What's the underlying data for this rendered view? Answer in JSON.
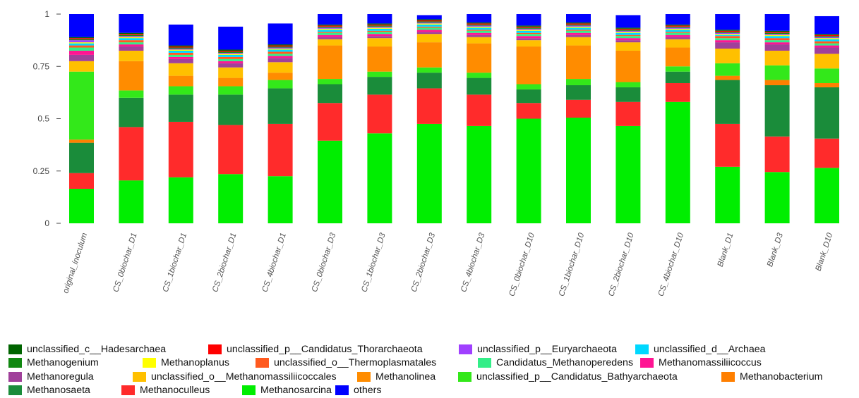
{
  "chart_data": {
    "type": "bar",
    "stacked": true,
    "title": "",
    "xlabel": "",
    "ylabel": "",
    "ylim": [
      0,
      1
    ],
    "yticks": [
      0,
      0.25,
      0.5,
      0.75,
      1
    ],
    "ytick_labels": [
      "0",
      "0.25",
      "0.5",
      "0.75",
      "1"
    ],
    "grid": false,
    "legend_position": "bottom",
    "categories": [
      "original_inoculum",
      "CS_0biochar_D1",
      "CS_1biochar_D1",
      "CS_2biochar_D1",
      "CS_4biochar_D1",
      "CS_0biochar_D3",
      "CS_1biochar_D3",
      "CS_2biochar_D3",
      "CS_4biochar_D3",
      "CS_0biochar_D10",
      "CS_1biochar_D10",
      "CS_2biochar_D10",
      "CS_4biochar_D10",
      "Blank_D1",
      "Blank_D3",
      "Blank_D10"
    ],
    "series": [
      {
        "name": "Methanosarcina",
        "color": "#00ee00",
        "values": [
          0.165,
          0.205,
          0.22,
          0.235,
          0.225,
          0.395,
          0.43,
          0.475,
          0.465,
          0.5,
          0.505,
          0.465,
          0.58,
          0.27,
          0.245,
          0.265
        ]
      },
      {
        "name": "Methanoculleus",
        "color": "#ff2b2b",
        "values": [
          0.075,
          0.255,
          0.265,
          0.235,
          0.25,
          0.18,
          0.185,
          0.17,
          0.15,
          0.075,
          0.085,
          0.115,
          0.09,
          0.205,
          0.17,
          0.14
        ]
      },
      {
        "name": "Methanosaeta",
        "color": "#1a8c3a",
        "values": [
          0.145,
          0.14,
          0.13,
          0.145,
          0.17,
          0.09,
          0.085,
          0.075,
          0.08,
          0.065,
          0.07,
          0.07,
          0.055,
          0.21,
          0.245,
          0.245
        ]
      },
      {
        "name": "Methanobacterium",
        "color": "#ff7f00",
        "values": [
          0.015,
          0.0,
          0.0,
          0.0,
          0.0,
          0.0,
          0.0,
          0.0,
          0.0,
          0.0,
          0.0,
          0.0,
          0.0,
          0.02,
          0.025,
          0.02
        ]
      },
      {
        "name": "unclassified_p__Candidatus_Bathyarchaeota",
        "color": "#33e81a",
        "values": [
          0.325,
          0.035,
          0.04,
          0.04,
          0.04,
          0.025,
          0.025,
          0.025,
          0.025,
          0.025,
          0.03,
          0.025,
          0.025,
          0.06,
          0.07,
          0.07
        ]
      },
      {
        "name": "Methanolinea",
        "color": "#ff8c00",
        "values": [
          0.0,
          0.14,
          0.05,
          0.04,
          0.035,
          0.16,
          0.12,
          0.12,
          0.14,
          0.18,
          0.16,
          0.15,
          0.09,
          0.0,
          0.0,
          0.0
        ]
      },
      {
        "name": "unclassified_o__Methanomassiliicoccales",
        "color": "#ffc000",
        "values": [
          0.05,
          0.05,
          0.06,
          0.05,
          0.05,
          0.03,
          0.04,
          0.04,
          0.03,
          0.03,
          0.04,
          0.04,
          0.04,
          0.07,
          0.07,
          0.07
        ]
      },
      {
        "name": "Methanoregula",
        "color": "#a0409a",
        "values": [
          0.03,
          0.02,
          0.02,
          0.02,
          0.02,
          0.01,
          0.01,
          0.01,
          0.01,
          0.01,
          0.01,
          0.01,
          0.01,
          0.03,
          0.03,
          0.03
        ]
      },
      {
        "name": "Methanomassiliicoccus",
        "color": "#ff1493",
        "values": [
          0.02,
          0.01,
          0.01,
          0.01,
          0.01,
          0.01,
          0.01,
          0.01,
          0.01,
          0.01,
          0.01,
          0.01,
          0.01,
          0.01,
          0.01,
          0.01
        ]
      },
      {
        "name": "Candidatus_Methanoperedens",
        "color": "#33ee88",
        "values": [
          0.015,
          0.01,
          0.01,
          0.01,
          0.01,
          0.01,
          0.01,
          0.01,
          0.01,
          0.01,
          0.01,
          0.01,
          0.01,
          0.01,
          0.01,
          0.01
        ]
      },
      {
        "name": "unclassified_o__Thermoplasmatales",
        "color": "#ff5a1f",
        "values": [
          0.01,
          0.01,
          0.01,
          0.01,
          0.01,
          0.005,
          0.005,
          0.005,
          0.005,
          0.005,
          0.005,
          0.005,
          0.005,
          0.01,
          0.01,
          0.01
        ]
      },
      {
        "name": "unclassified_d__Archaea",
        "color": "#00d8ff",
        "values": [
          0.01,
          0.01,
          0.01,
          0.01,
          0.01,
          0.01,
          0.01,
          0.01,
          0.01,
          0.01,
          0.01,
          0.01,
          0.01,
          0.005,
          0.01,
          0.01
        ]
      },
      {
        "name": "Methanoplanus",
        "color": "#ffff00",
        "values": [
          0.005,
          0.005,
          0.005,
          0.005,
          0.005,
          0.005,
          0.005,
          0.005,
          0.005,
          0.005,
          0.005,
          0.005,
          0.005,
          0.005,
          0.005,
          0.005
        ]
      },
      {
        "name": "unclassified_p__Euryarchaeota",
        "color": "#a040ff",
        "values": [
          0.01,
          0.005,
          0.005,
          0.005,
          0.005,
          0.005,
          0.005,
          0.005,
          0.005,
          0.005,
          0.005,
          0.005,
          0.005,
          0.005,
          0.005,
          0.005
        ]
      },
      {
        "name": "Methanogenium",
        "color": "#118811",
        "values": [
          0.005,
          0.005,
          0.005,
          0.005,
          0.005,
          0.005,
          0.005,
          0.005,
          0.005,
          0.005,
          0.005,
          0.005,
          0.005,
          0.005,
          0.005,
          0.005
        ]
      },
      {
        "name": "unclassified_p__Candidatus_Thorarchaeota",
        "color": "#ff0000",
        "values": [
          0.005,
          0.005,
          0.005,
          0.005,
          0.005,
          0.005,
          0.005,
          0.005,
          0.005,
          0.005,
          0.005,
          0.005,
          0.005,
          0.005,
          0.005,
          0.005
        ]
      },
      {
        "name": "unclassified_c__Hadesarchaea",
        "color": "#006400",
        "values": [
          0.005,
          0.005,
          0.005,
          0.005,
          0.005,
          0.005,
          0.005,
          0.005,
          0.005,
          0.005,
          0.005,
          0.005,
          0.005,
          0.005,
          0.005,
          0.005
        ]
      },
      {
        "name": "others",
        "color": "#0000ff",
        "values": [
          0.11,
          0.09,
          0.1,
          0.11,
          0.1,
          0.055,
          0.055,
          0.02,
          0.07,
          0.055,
          0.045,
          0.06,
          0.055,
          0.085,
          0.085,
          0.085
        ]
      }
    ],
    "legend": [
      [
        "unclassified_c__Hadesarchaea",
        "unclassified_p__Candidatus_Thorarchaeota",
        "unclassified_p__Euryarchaeota",
        "unclassified_d__Archaea"
      ],
      [
        "Methanogenium",
        "Methanoplanus",
        "unclassified_o__Thermoplasmatales",
        "Candidatus_Methanoperedens",
        "Methanomassiliicoccus"
      ],
      [
        "Methanoregula",
        "unclassified_o__Methanomassiliicoccales",
        "Methanolinea",
        "unclassified_p__Candidatus_Bathyarchaeota",
        "Methanobacterium"
      ],
      [
        "Methanosaeta",
        "Methanoculleus",
        "Methanosarcina",
        "others"
      ]
    ]
  }
}
